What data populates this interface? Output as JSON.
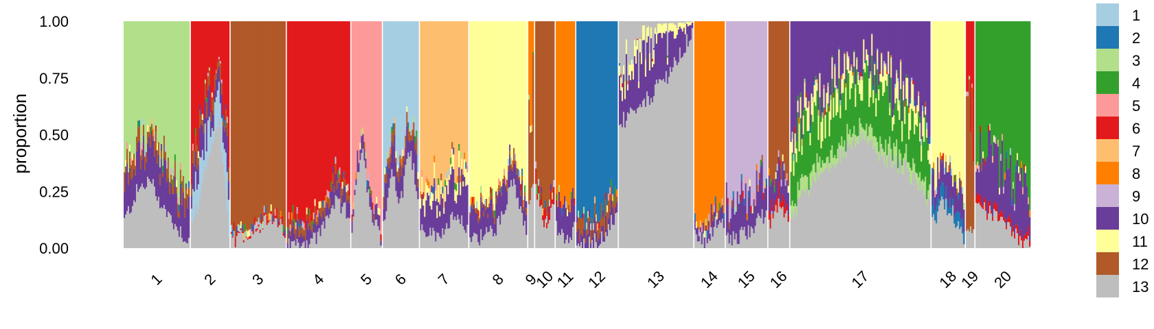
{
  "chart_data": {
    "type": "area",
    "title": "",
    "xlabel": "",
    "ylabel": "proportion",
    "ylim": [
      0,
      1
    ],
    "yticks": [
      "0.00",
      "0.25",
      "0.50",
      "0.75",
      "1.00"
    ],
    "legend_position": "right",
    "cluster_names": [
      "1",
      "2",
      "3",
      "4",
      "5",
      "6",
      "7",
      "8",
      "9",
      "10",
      "11",
      "12",
      "13"
    ],
    "colors": [
      "#a6cee3",
      "#1f78b4",
      "#b2df8a",
      "#33a02c",
      "#fb9a99",
      "#e31a1c",
      "#fdbf6f",
      "#ff7f00",
      "#cab2d6",
      "#6a3d9a",
      "#ffff99",
      "#b15928",
      "#bebebe"
    ],
    "groups": [
      {
        "label": "1",
        "dominant": 3,
        "n": 48,
        "p13": [
          0.12,
          0.25,
          0.3,
          0.18,
          0.1,
          0.03
        ],
        "others": {
          "10": 0.15,
          "12": 0.05
        }
      },
      {
        "label": "2",
        "dominant": 6,
        "n": 28,
        "p13": [
          0.1,
          0.25,
          0.45,
          0.55,
          0.08
        ],
        "others": {
          "10": 0.1,
          "1": 0.12,
          "12": 0.05
        }
      },
      {
        "label": "3",
        "dominant": 12,
        "n": 40,
        "p13": [
          0.03,
          0.06,
          0.1,
          0.12,
          0.08
        ],
        "others": {
          "6": 0.01
        }
      },
      {
        "label": "4",
        "dominant": 6,
        "n": 46,
        "p13": [
          0.01,
          0.02,
          0.05,
          0.2,
          0.15
        ],
        "others": {
          "10": 0.06,
          "12": 0.03
        }
      },
      {
        "label": "5",
        "dominant": 5,
        "n": 22,
        "p13": [
          0.1,
          0.45,
          0.15,
          0.05
        ],
        "others": {
          "10": 0.05
        }
      },
      {
        "label": "6",
        "dominant": 1,
        "n": 26,
        "p13": [
          0.12,
          0.35,
          0.2,
          0.45,
          0.25
        ],
        "others": {
          "10": 0.12,
          "12": 0.05
        }
      },
      {
        "label": "7",
        "dominant": 7,
        "n": 35,
        "p13": [
          0.08,
          0.05,
          0.12,
          0.1
        ],
        "others": {
          "10": 0.15,
          "11": 0.05
        }
      },
      {
        "label": "8",
        "dominant": 11,
        "n": 42,
        "p13": [
          0.05,
          0.05,
          0.1,
          0.3,
          0.06
        ],
        "others": {
          "10": 0.1,
          "12": 0.02
        }
      },
      {
        "label": "9",
        "dominant": 8,
        "n": 4,
        "p13": [
          0.2,
          0.25
        ],
        "others": {
          "12": 0.5
        }
      },
      {
        "label": "10",
        "dominant": 12,
        "n": 14,
        "p13": [
          0.25,
          0.1,
          0.2
        ],
        "others": {
          "6": 0.05
        }
      },
      {
        "label": "11",
        "dominant": 8,
        "n": 14,
        "p13": [
          0.1,
          0.05,
          0.08
        ],
        "others": {
          "10": 0.12
        }
      },
      {
        "label": "12",
        "dominant": 2,
        "n": 30,
        "p13": [
          0.01,
          0.02,
          0.05,
          0.15
        ],
        "others": {
          "10": 0.05,
          "12": 0.05
        }
      },
      {
        "label": "13",
        "dominant": 13,
        "n": 54,
        "p13": [
          0.55,
          0.6,
          0.7,
          0.8,
          0.95
        ],
        "others": {
          "10": 0.2,
          "11": 0.05
        }
      },
      {
        "label": "14",
        "dominant": 8,
        "n": 22,
        "p13": [
          0.05,
          0.03,
          0.1,
          0.12
        ],
        "others": {
          "10": 0.05
        }
      },
      {
        "label": "15",
        "dominant": 9,
        "n": 30,
        "p13": [
          0.03,
          0.05,
          0.1,
          0.15
        ],
        "others": {
          "10": 0.15
        }
      },
      {
        "label": "16",
        "dominant": 12,
        "n": 15,
        "p13": [
          0.1,
          0.2,
          0.15
        ],
        "others": {
          "10": 0.1,
          "6": 0.05
        }
      },
      {
        "label": "17",
        "dominant": 10,
        "n": 102,
        "p13": [
          0.15,
          0.3,
          0.4,
          0.5,
          0.4,
          0.35,
          0.2
        ],
        "others": {
          "4": 0.2,
          "3": 0.05,
          "11": 0.08
        }
      },
      {
        "label": "18",
        "dominant": 11,
        "n": 24,
        "p13": [
          0.1,
          0.2,
          0.15,
          0.05
        ],
        "others": {
          "10": 0.1,
          "2": 0.05
        }
      },
      {
        "label": "19",
        "dominant": 6,
        "n": 6,
        "p13": [
          0.05,
          0.1
        ],
        "others": {
          "12": 0.45
        }
      },
      {
        "label": "20",
        "dominant": 4,
        "n": 40,
        "p13": [
          0.2,
          0.15,
          0.1,
          0.05,
          0.02
        ],
        "others": {
          "10": 0.2,
          "6": 0.03
        }
      }
    ]
  }
}
